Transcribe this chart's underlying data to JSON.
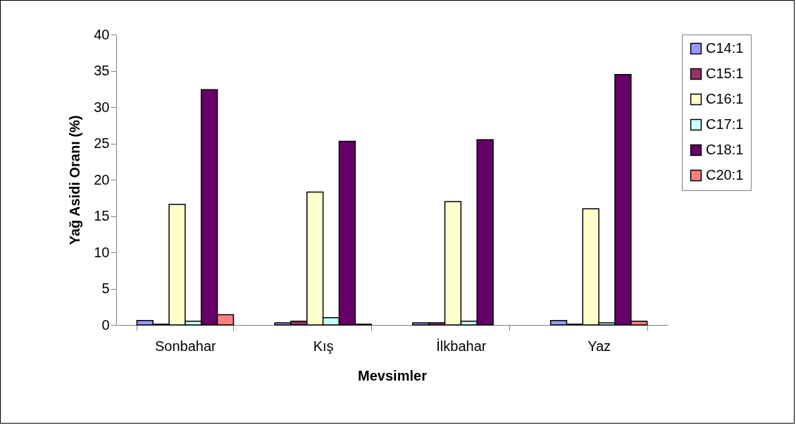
{
  "chart_data": {
    "type": "bar",
    "xlabel": "Mevsimler",
    "ylabel": "Yağ Asidi Oranı (%)",
    "categories": [
      "Sonbahar",
      "Kış",
      "İlkbahar",
      "Yaz"
    ],
    "series": [
      {
        "name": "C14:1",
        "color": "#9999ff",
        "values": [
          0.6,
          0.3,
          0.3,
          0.6
        ]
      },
      {
        "name": "C15:1",
        "color": "#993366",
        "values": [
          0.1,
          0.5,
          0.3,
          0.1
        ]
      },
      {
        "name": "C16:1",
        "color": "#ffffcc",
        "values": [
          16.6,
          18.3,
          17.0,
          16.0
        ]
      },
      {
        "name": "C17:1",
        "color": "#ccffff",
        "values": [
          0.5,
          1.0,
          0.5,
          0.3
        ]
      },
      {
        "name": "C18:1",
        "color": "#660066",
        "values": [
          32.4,
          25.3,
          25.5,
          34.5
        ]
      },
      {
        "name": "C20:1",
        "color": "#ff8080",
        "values": [
          1.4,
          0.1,
          null,
          0.5
        ]
      }
    ],
    "ylim": [
      0,
      40
    ],
    "yticks": [
      0,
      5,
      10,
      15,
      20,
      25,
      30,
      35,
      40
    ],
    "grid": false,
    "legend": "right"
  }
}
